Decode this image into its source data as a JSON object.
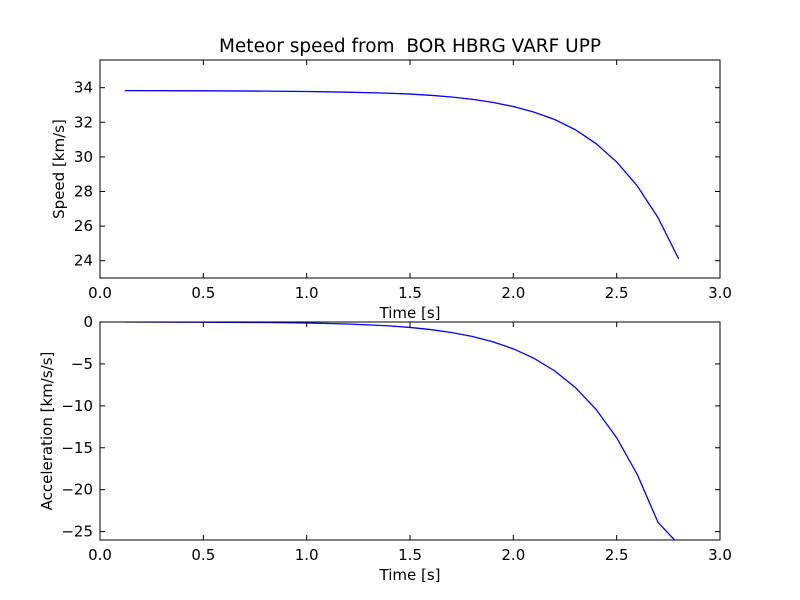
{
  "chart_data": [
    {
      "type": "line",
      "title": "Meteor speed from  BOR HBRG VARF UPP",
      "xlabel": "Time [s]",
      "ylabel": "Speed [km/s]",
      "xlim": [
        0.0,
        3.0
      ],
      "ylim": [
        23.0,
        35.6
      ],
      "xticks": [
        "0.0",
        "0.5",
        "1.0",
        "1.5",
        "2.0",
        "2.5",
        "3.0"
      ],
      "yticks": [
        "24",
        "26",
        "28",
        "30",
        "32",
        "34"
      ],
      "grid": false,
      "series": [
        {
          "color": "#0000ff",
          "x": [
            0.12,
            0.5,
            0.8,
            1.0,
            1.2,
            1.4,
            1.5,
            1.6,
            1.7,
            1.8,
            1.9,
            2.0,
            2.1,
            2.2,
            2.3,
            2.4,
            2.5,
            2.6,
            2.7,
            2.8
          ],
          "y": [
            33.83,
            33.82,
            33.8,
            33.78,
            33.74,
            33.68,
            33.63,
            33.56,
            33.46,
            33.33,
            33.15,
            32.91,
            32.59,
            32.16,
            31.57,
            30.77,
            29.71,
            28.32,
            26.49,
            24.11
          ]
        }
      ]
    },
    {
      "type": "line",
      "title": "",
      "xlabel": "Time [s]",
      "ylabel": "Acceleration [km/s/s]",
      "xlim": [
        0.0,
        3.0
      ],
      "ylim": [
        -26.0,
        0.0
      ],
      "xticks": [
        "0.0",
        "0.5",
        "1.0",
        "1.5",
        "2.0",
        "2.5",
        "3.0"
      ],
      "yticks": [
        "0",
        "−5",
        "−10",
        "−15",
        "−20",
        "−25"
      ],
      "grid": false,
      "series": [
        {
          "color": "#0000ff",
          "x": [
            0.12,
            0.5,
            0.8,
            1.0,
            1.2,
            1.4,
            1.5,
            1.6,
            1.7,
            1.8,
            1.9,
            2.0,
            2.1,
            2.2,
            2.3,
            2.4,
            2.5,
            2.6,
            2.7,
            2.78
          ],
          "y": [
            0.0,
            -0.02,
            -0.06,
            -0.12,
            -0.24,
            -0.46,
            -0.65,
            -0.9,
            -1.25,
            -1.72,
            -2.36,
            -3.2,
            -4.33,
            -5.83,
            -7.81,
            -10.41,
            -13.8,
            -18.2,
            -23.89,
            -26.0
          ]
        }
      ]
    }
  ]
}
